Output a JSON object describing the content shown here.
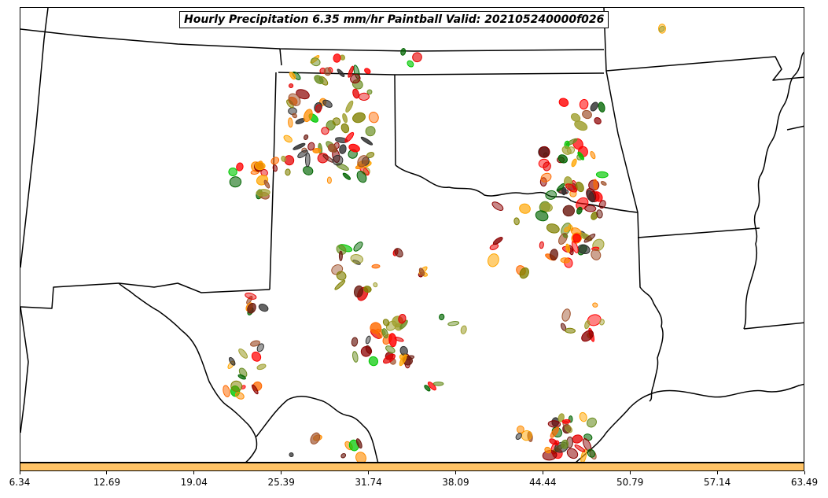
{
  "title": "Hourly Precipitation 6.35 mm/hr Paintball Valid: 202105240000f026",
  "colorbar": {
    "color": "#ffc366",
    "ticks": [
      "6.34",
      "12.69",
      "19.04",
      "25.39",
      "31.74",
      "38.09",
      "44.44",
      "50.79",
      "57.14",
      "63.49"
    ]
  },
  "member_colors": [
    "#ff0000",
    "#e60000",
    "#8b0000",
    "#6b1a10",
    "#ff8c00",
    "#ff6a00",
    "#ffa500",
    "#00c800",
    "#006400",
    "#6b8e23",
    "#808000",
    "#a0a030",
    "#2f2f2f",
    "#a0522d"
  ]
}
